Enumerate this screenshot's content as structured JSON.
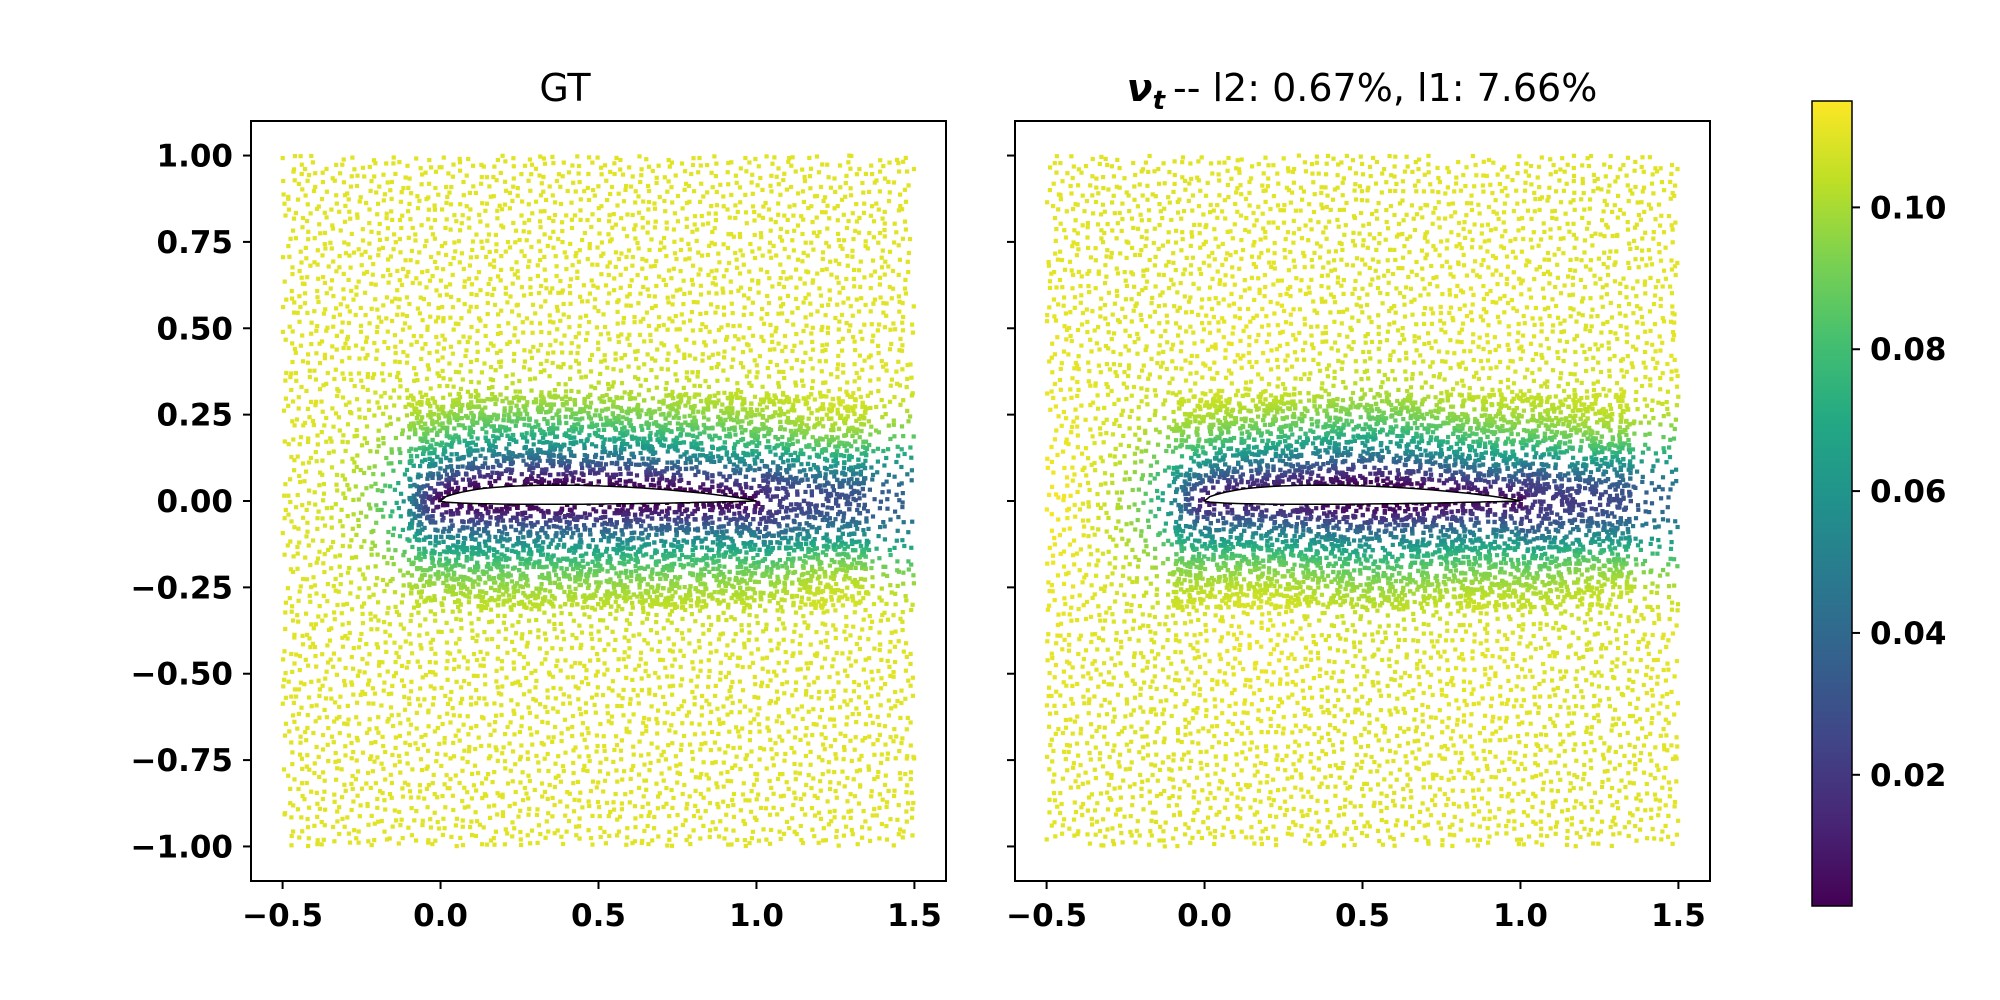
{
  "chart_data": [
    {
      "type": "scatter",
      "title": "GT",
      "xlim": [
        -0.6,
        1.6
      ],
      "ylim": [
        -1.1,
        1.1
      ],
      "xticks": [
        "−0.5",
        "0.0",
        "0.5",
        "1.0",
        "1.5"
      ],
      "yticks": [
        "1.00",
        "0.75",
        "0.50",
        "0.25",
        "0.00",
        "−0.25",
        "−0.50",
        "−0.75",
        "−1.00"
      ],
      "x_range_points": [
        -0.5,
        1.5
      ],
      "y_range_points": [
        -1.0,
        1.0
      ],
      "airfoil": {
        "leading_edge": [
          0.0,
          0.0
        ],
        "trailing_edge": [
          1.0,
          0.0
        ],
        "max_upper": 0.09,
        "max_lower": -0.015
      },
      "field_summary": {
        "far_field": 0.11,
        "near_surface": 0.005,
        "wake_center_at_x_1.25": 0.03
      }
    },
    {
      "type": "scatter",
      "title_symbol": "ν",
      "title_subscript": "t",
      "title_rest": "--  l2: 0.67%, l1: 7.66%",
      "xlim": [
        -0.6,
        1.6
      ],
      "ylim": [
        -1.1,
        1.1
      ],
      "xticks": [
        "−0.5",
        "0.0",
        "0.5",
        "1.0",
        "1.5"
      ],
      "yticks": [
        "1.00",
        "0.75",
        "0.50",
        "0.25",
        "0.00",
        "−0.25",
        "−0.50",
        "−0.75",
        "−1.00"
      ],
      "x_range_points": [
        -0.5,
        1.5
      ],
      "y_range_points": [
        -1.0,
        1.0
      ],
      "airfoil": {
        "leading_edge": [
          0.0,
          0.0
        ],
        "trailing_edge": [
          1.0,
          0.0
        ],
        "max_upper": 0.09,
        "max_lower": -0.015
      },
      "field_summary": {
        "far_field": 0.11,
        "near_surface": 0.005,
        "wake_center_at_x_1.25": 0.03
      }
    }
  ],
  "colorbar": {
    "colormap": "viridis",
    "min": 0.0015,
    "max": 0.115,
    "ticks": [
      {
        "value": 0.1,
        "label": "0.10"
      },
      {
        "value": 0.08,
        "label": "0.08"
      },
      {
        "value": 0.06,
        "label": "0.06"
      },
      {
        "value": 0.04,
        "label": "0.04"
      },
      {
        "value": 0.02,
        "label": "0.02"
      }
    ]
  }
}
